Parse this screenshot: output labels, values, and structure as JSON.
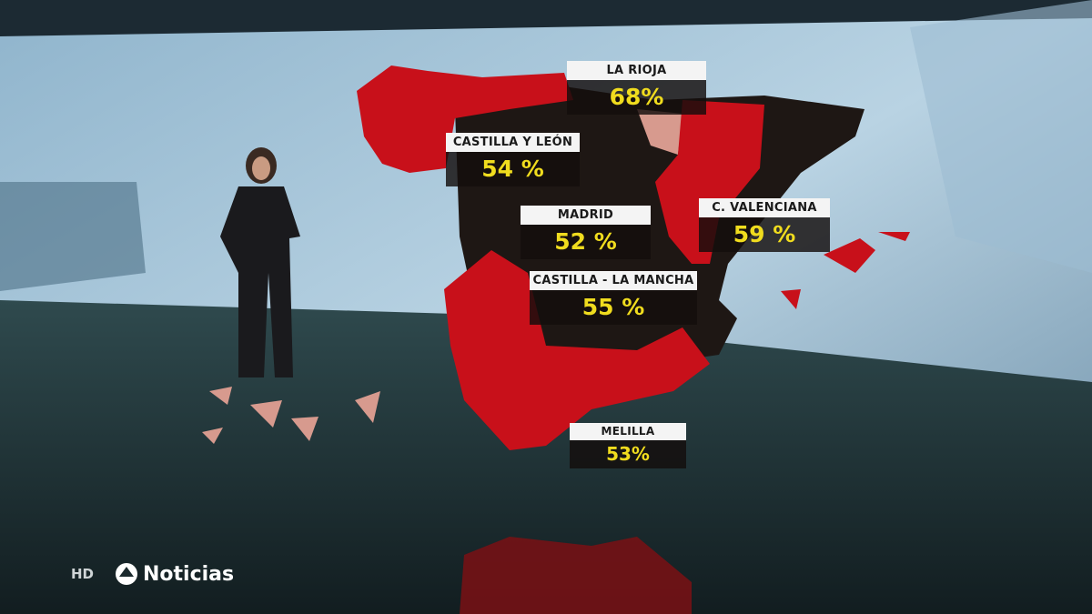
{
  "broadcast": {
    "quality": "HD",
    "brand": "Noticias",
    "logo_icon": "antena3-logo-icon"
  },
  "colors": {
    "above_threshold": "#c8101a",
    "below_threshold": "#1e1714",
    "value_text": "#f0dc1e"
  },
  "regions": [
    {
      "name": "LA RIOJA",
      "value": "68%"
    },
    {
      "name": "CASTILLA Y LEÓN",
      "value": "54 %"
    },
    {
      "name": "MADRID",
      "value": "52 %"
    },
    {
      "name": "C. VALENCIANA",
      "value": "59 %"
    },
    {
      "name": "CASTILLA - LA MANCHA",
      "value": "55 %"
    },
    {
      "name": "MELILLA",
      "value": "53%"
    }
  ]
}
